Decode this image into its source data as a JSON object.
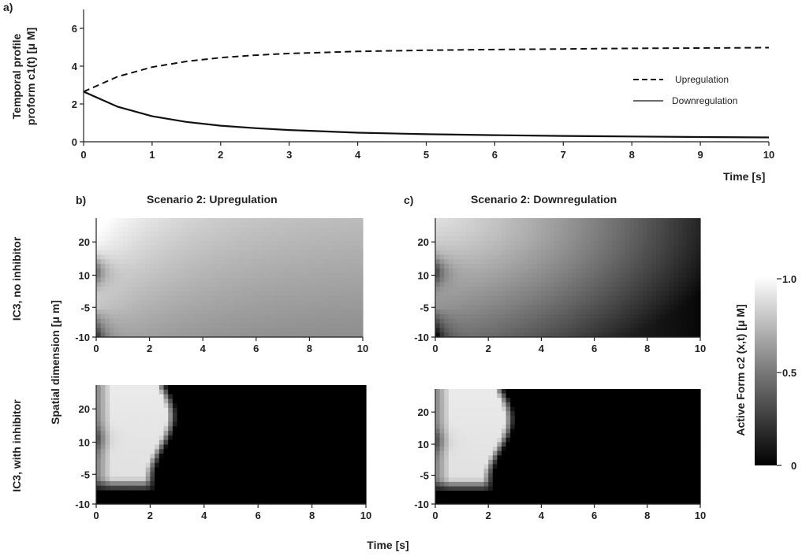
{
  "chart_data": [
    {
      "type": "line",
      "panel_label": "a)",
      "xlabel": "Time [s]",
      "ylabel_line1": "Temporal profile",
      "ylabel_line2": "proform c1(t) [μ M]",
      "xlim": [
        0,
        10
      ],
      "ylim": [
        0,
        7
      ],
      "x_ticks": [
        0,
        1,
        2,
        3,
        4,
        5,
        6,
        7,
        8,
        9,
        10
      ],
      "y_ticks": [
        0,
        2,
        4,
        6
      ],
      "series": [
        {
          "name": "Upregulation",
          "style": "dashed",
          "x": [
            0,
            0.5,
            1,
            1.5,
            2,
            2.5,
            3,
            4,
            5,
            6,
            7,
            8,
            9,
            10
          ],
          "y": [
            2.65,
            3.45,
            3.95,
            4.25,
            4.45,
            4.58,
            4.67,
            4.78,
            4.84,
            4.88,
            4.91,
            4.94,
            4.96,
            4.98
          ]
        },
        {
          "name": "Downregulation",
          "style": "solid",
          "x": [
            0,
            0.5,
            1,
            1.5,
            2,
            2.5,
            3,
            4,
            5,
            6,
            7,
            8,
            9,
            10
          ],
          "y": [
            2.65,
            1.85,
            1.35,
            1.05,
            0.85,
            0.72,
            0.62,
            0.48,
            0.4,
            0.35,
            0.31,
            0.28,
            0.25,
            0.23
          ]
        }
      ]
    },
    {
      "type": "heatmap",
      "panel_label": "b)",
      "title": "Scenario 2: Upregulation",
      "row_label": "IC3, no inhibitor",
      "variant": "upregulation",
      "x_ticks": [
        0,
        2,
        4,
        6,
        8,
        10
      ],
      "y_ticks": [
        20,
        10,
        -5,
        -10
      ]
    },
    {
      "type": "heatmap",
      "panel_label": "c)",
      "title": "Scenario 2: Downregulation",
      "row_label": "",
      "variant": "downregulation",
      "x_ticks": [
        0,
        2,
        4,
        6,
        8,
        10
      ],
      "y_ticks": [
        20,
        10,
        -5,
        -10
      ]
    },
    {
      "type": "heatmap",
      "row_label": "IC3, with inhibitor",
      "variant": "inhibitor",
      "x_ticks": [
        0,
        2,
        4,
        6,
        8,
        10
      ],
      "y_ticks": [
        20,
        10,
        -5,
        -10
      ]
    },
    {
      "type": "heatmap",
      "variant": "inhibitor",
      "x_ticks": [
        0,
        2,
        4,
        6,
        8,
        10
      ],
      "y_ticks": [
        20,
        10,
        -5,
        -10
      ]
    }
  ],
  "shared": {
    "spatial_ylabel": "Spatial dimension [μ m]",
    "time_xlabel": "Time [s]",
    "colorbar_label": "Active Form c2 (x,t) [μ M]",
    "colorbar_ticks": [
      "1.0",
      "0.5",
      "0"
    ]
  }
}
